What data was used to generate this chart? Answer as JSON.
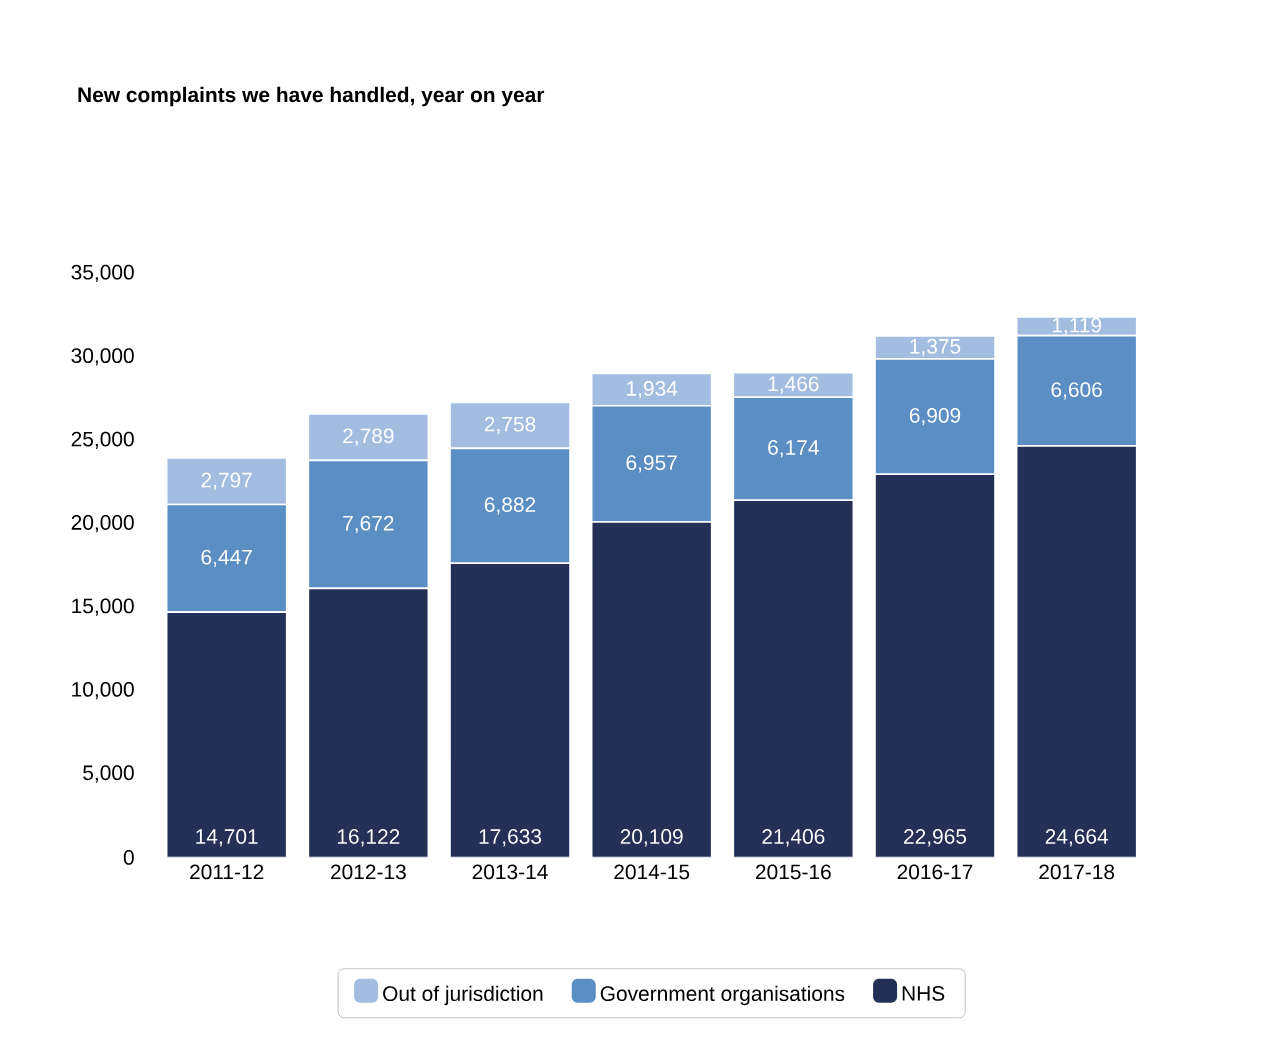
{
  "chart_data": {
    "type": "bar",
    "title": "New complaints we have handled, year on year",
    "stacked": true,
    "categories": [
      "2011-12",
      "2012-13",
      "2013-14",
      "2014-15",
      "2015-16",
      "2016-17",
      "2017-18"
    ],
    "series": [
      {
        "name": "NHS",
        "color": "#253057",
        "values": [
          14701,
          16122,
          17633,
          20109,
          21406,
          22965,
          24664
        ],
        "value_labels": [
          "14,701",
          "16,122",
          "17,633",
          "20,109",
          "21,406",
          "22,965",
          "24,664"
        ]
      },
      {
        "name": "Government organisations",
        "color": "#5b8fc4",
        "values": [
          6447,
          7672,
          6882,
          6957,
          6174,
          6909,
          6606
        ],
        "value_labels": [
          "6,447",
          "7,672",
          "6,882",
          "6,957",
          "6,174",
          "6,909",
          "6,606"
        ]
      },
      {
        "name": "Out of jurisdiction",
        "color": "#a3bde0",
        "values": [
          2797,
          2789,
          2758,
          1934,
          1466,
          1375,
          1119
        ],
        "value_labels": [
          "2,797",
          "2,789",
          "2,758",
          "1,934",
          "1,466",
          "1,375",
          "1,119"
        ]
      }
    ],
    "ylim": [
      0,
      35000
    ],
    "yticks": [
      {
        "value": 0,
        "label": "0"
      },
      {
        "value": 5000,
        "label": "5,000"
      },
      {
        "value": 10000,
        "label": "10,000"
      },
      {
        "value": 15000,
        "label": "15,000"
      },
      {
        "value": 20000,
        "label": "20,000"
      },
      {
        "value": 25000,
        "label": "25,000"
      },
      {
        "value": 30000,
        "label": "30,000"
      },
      {
        "value": 35000,
        "label": "35,000"
      }
    ],
    "grid": false,
    "legend": "bottom"
  }
}
